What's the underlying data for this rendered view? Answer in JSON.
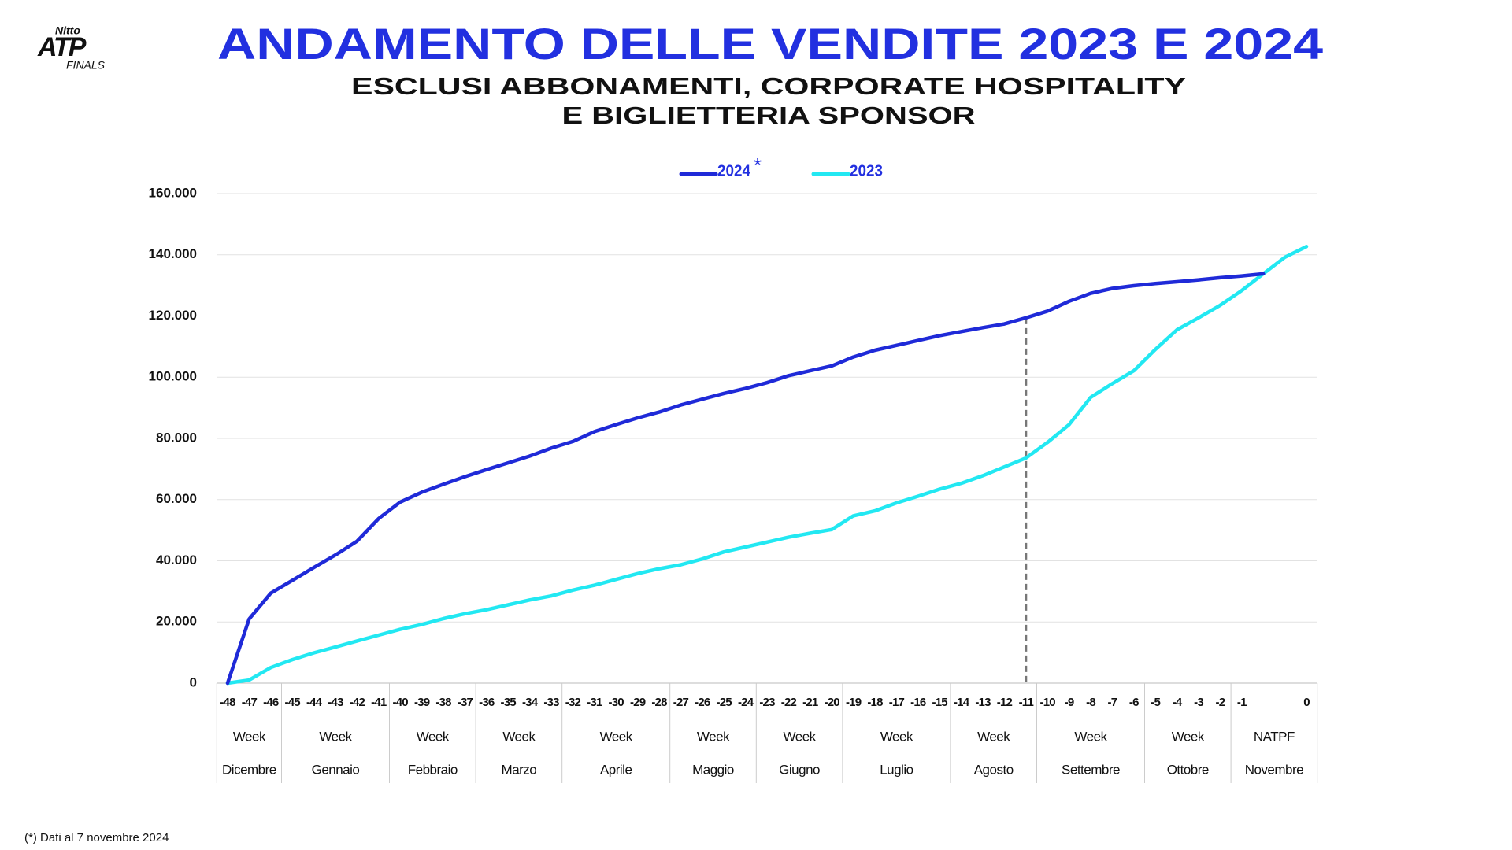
{
  "logo": {
    "top": "Nitto",
    "main": "ATP",
    "bottom": "FINALS"
  },
  "chart_data": {
    "type": "line",
    "title": "ANDAMENTO DELLE VENDITE 2023 E 2024",
    "subtitle": [
      "ESCLUSI ABBONAMENTI, CORPORATE HOSPITALITY",
      "E BIGLIETTERIA SPONSOR"
    ],
    "categories": [
      "-48",
      "-47",
      "-46",
      "-45",
      "-44",
      "-43",
      "-42",
      "-41",
      "-40",
      "-39",
      "-38",
      "-37",
      "-36",
      "-35",
      "-34",
      "-33",
      "-32",
      "-31",
      "-30",
      "-29",
      "-28",
      "-27",
      "-26",
      "-25",
      "-24",
      "-23",
      "-22",
      "-21",
      "-20",
      "-19",
      "-18",
      "-17",
      "-16",
      "-15",
      "-14",
      "-13",
      "-12",
      "-11",
      "-10",
      "-9",
      "-8",
      "-7",
      "-6",
      "-5",
      "-4",
      "-3",
      "-2",
      "-1",
      null,
      null,
      "0"
    ],
    "groups": [
      {
        "week": "Week",
        "month": "Dicembre",
        "span": 3
      },
      {
        "week": "Week",
        "month": "Gennaio",
        "span": 5
      },
      {
        "week": "Week",
        "month": "Febbraio",
        "span": 4
      },
      {
        "week": "Week",
        "month": "Marzo",
        "span": 4
      },
      {
        "week": "Week",
        "month": "Aprile",
        "span": 5
      },
      {
        "week": "Week",
        "month": "Maggio",
        "span": 4
      },
      {
        "week": "Week",
        "month": "Giugno",
        "span": 4
      },
      {
        "week": "Week",
        "month": "Luglio",
        "span": 5
      },
      {
        "week": "Week",
        "month": "Agosto",
        "span": 4
      },
      {
        "week": "Week",
        "month": "Settembre",
        "span": 5
      },
      {
        "week": "Week",
        "month": "Ottobre",
        "span": 4
      },
      {
        "week": "NATPF",
        "month": "Novembre",
        "span": 4
      }
    ],
    "series": [
      {
        "name": "2024",
        "legend_note": "*",
        "color": "#1f2ad8",
        "values": [
          0,
          21000,
          29400,
          33600,
          37800,
          41900,
          46400,
          53800,
          59200,
          62400,
          65000,
          67500,
          69800,
          72000,
          74200,
          76800,
          79000,
          82200,
          84500,
          86700,
          88600,
          90900,
          92800,
          94700,
          96300,
          98200,
          100500,
          102100,
          103700,
          106600,
          108800,
          110400,
          112000,
          113600,
          114900,
          116200,
          117400,
          119400,
          121600,
          124800,
          127400,
          129000,
          129900,
          130600,
          131200,
          131800,
          132500,
          133100,
          133800,
          null,
          null
        ]
      },
      {
        "name": "2023",
        "color": "#22e8f2",
        "values": [
          0,
          1000,
          5100,
          7700,
          9900,
          11800,
          13800,
          15700,
          17600,
          19200,
          21100,
          22700,
          24000,
          25600,
          27200,
          28500,
          30400,
          32000,
          33900,
          35800,
          37400,
          38700,
          40600,
          42900,
          44500,
          46100,
          47700,
          49000,
          50200,
          54700,
          56300,
          58900,
          61100,
          63400,
          65300,
          67800,
          70700,
          73600,
          78700,
          84500,
          93400,
          97900,
          102100,
          109100,
          115500,
          119400,
          123500,
          128300,
          133800,
          139200,
          142700
        ]
      }
    ],
    "reference_line": {
      "x": "-11"
    },
    "ylim": [
      0,
      160000
    ],
    "yticks": [
      0,
      {
        "value": 20000,
        "label": "20.000"
      },
      {
        "value": 40000,
        "label": "40.000"
      },
      {
        "value": 60000,
        "label": "60.000"
      },
      {
        "value": 80000,
        "label": "80.000"
      },
      {
        "value": 100000,
        "label": "100.000"
      },
      {
        "value": 120000,
        "label": "120.000"
      },
      {
        "value": 140000,
        "label": "140.000"
      },
      {
        "value": 160000,
        "label": "160.000"
      }
    ],
    "grid": true,
    "footnote": "(*) Dati al 7 novembre 2024"
  }
}
